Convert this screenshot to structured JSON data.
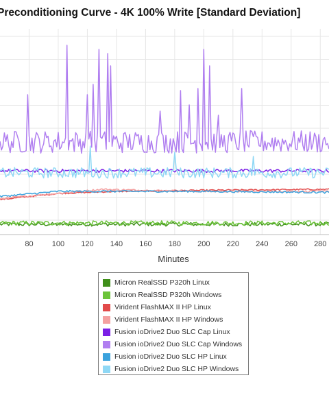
{
  "chart_data": {
    "type": "line",
    "title": "Preconditioning Curve - 4K 100% Write [Standard Deviation]",
    "xlabel": "Minutes",
    "ylabel": "",
    "xlim": [
      60,
      286
    ],
    "ylim": [
      0,
      100
    ],
    "x_ticks": [
      80,
      100,
      120,
      140,
      160,
      180,
      200,
      220,
      240,
      260,
      280
    ],
    "grid": true,
    "legend_position": "bottom",
    "series": [
      {
        "name": "Micron RealSSD P320h Linux",
        "color": "#3f8f1a",
        "base": 5,
        "noise": 0.9,
        "spikes": []
      },
      {
        "name": "Micron RealSSD P320h Windows",
        "color": "#6cc43a",
        "base": 5.6,
        "noise": 1.1,
        "spikes": []
      },
      {
        "name": "Virident FlashMAX II HP Linux",
        "color": "#e24a4a",
        "base_points": [
          [
            60,
            17
          ],
          [
            100,
            20
          ],
          [
            140,
            21
          ],
          [
            200,
            21.5
          ],
          [
            286,
            22
          ]
        ],
        "noise": 0.35,
        "spikes": []
      },
      {
        "name": "Virident FlashMAX II HP Windows",
        "color": "#f4a0a0",
        "base_points": [
          [
            60,
            17.5
          ],
          [
            100,
            20
          ],
          [
            130,
            22
          ],
          [
            160,
            21.5
          ],
          [
            200,
            21
          ],
          [
            286,
            21
          ]
        ],
        "noise": 0.45,
        "spikes": []
      },
      {
        "name": "Fusion ioDrive2 Duo SLC Cap Linux",
        "color": "#7b1fe6",
        "base": 31,
        "noise": 0.8,
        "spikes": []
      },
      {
        "name": "Fusion ioDrive2 Duo SLC Cap Windows",
        "color": "#b07ef0",
        "base": 45,
        "noise": 5.5,
        "spikes": [
          [
            106,
            92
          ],
          [
            128,
            90
          ],
          [
            134,
            88
          ],
          [
            136,
            82
          ],
          [
            124,
            73
          ],
          [
            120,
            68
          ],
          [
            200,
            90
          ],
          [
            204,
            82
          ],
          [
            196,
            71
          ],
          [
            184,
            70
          ],
          [
            226,
            71
          ],
          [
            79,
            68
          ],
          [
            190,
            63
          ],
          [
            170,
            60
          ],
          [
            210,
            58
          ]
        ]
      },
      {
        "name": "Fusion ioDrive2 Duo SLC HP Linux",
        "color": "#3aa2dd",
        "base_points": [
          [
            60,
            18.5
          ],
          [
            100,
            21
          ],
          [
            140,
            21
          ],
          [
            200,
            21
          ],
          [
            286,
            20.5
          ]
        ],
        "noise": 0.45,
        "spikes": []
      },
      {
        "name": "Fusion ioDrive2 Duo SLC HP Windows",
        "color": "#8fd8f5",
        "base": 30,
        "noise": 2.6,
        "spikes": [
          [
            122,
            43
          ],
          [
            180,
            40
          ],
          [
            234,
            38
          ]
        ]
      }
    ]
  }
}
